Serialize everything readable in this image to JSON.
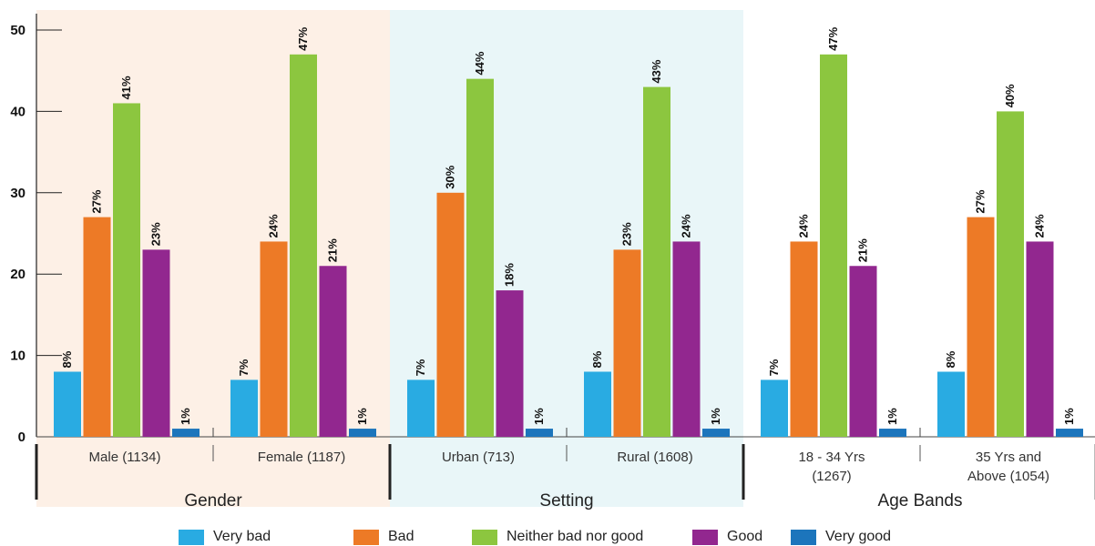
{
  "chart_data": {
    "type": "bar",
    "ylim": [
      0,
      50
    ],
    "yticks": [
      "0",
      "10",
      "20",
      "30",
      "40",
      "50"
    ],
    "categories": [
      "Male (1134)",
      "Female (1187)",
      "Urban (713)",
      "Rural (1608)",
      "18 - 34 Yrs\n(1267)",
      "35 Yrs and\nAbove (1054)"
    ],
    "groups": [
      {
        "label": "Gender",
        "categories": [
          0,
          1
        ],
        "background": "#fdf0e6"
      },
      {
        "label": "Setting",
        "categories": [
          2,
          3
        ],
        "background": "#e9f6f8"
      },
      {
        "label": "Age Bands",
        "categories": [
          4,
          5
        ],
        "background": "#ffffff"
      }
    ],
    "series": [
      {
        "name": "Very bad",
        "color": "#29abe2",
        "values": [
          8,
          7,
          7,
          8,
          7,
          8
        ],
        "labels": [
          "8%",
          "7%",
          "7%",
          "8%",
          "7%",
          "8%"
        ]
      },
      {
        "name": "Bad",
        "color": "#ed7a26",
        "values": [
          27,
          24,
          30,
          23,
          24,
          27
        ],
        "labels": [
          "27%",
          "24%",
          "30%",
          "23%",
          "24%",
          "27%"
        ]
      },
      {
        "name": "Neither bad nor good",
        "color": "#8cc63f",
        "values": [
          41,
          47,
          44,
          43,
          47,
          40
        ],
        "labels": [
          "41%",
          "47%",
          "44%",
          "43%",
          "47%",
          "40%"
        ]
      },
      {
        "name": "Good",
        "color": "#92278f",
        "values": [
          23,
          21,
          18,
          24,
          21,
          24
        ],
        "labels": [
          "23%",
          "21%",
          "18%",
          "24%",
          "21%",
          "24%"
        ]
      },
      {
        "name": "Very good",
        "color": "#1c75bc",
        "values": [
          1,
          1,
          1,
          1,
          1,
          1
        ],
        "labels": [
          "1%",
          "1%",
          "1%",
          "1%",
          "1%",
          "1%"
        ]
      }
    ],
    "legend_position": "bottom",
    "grid": false
  }
}
